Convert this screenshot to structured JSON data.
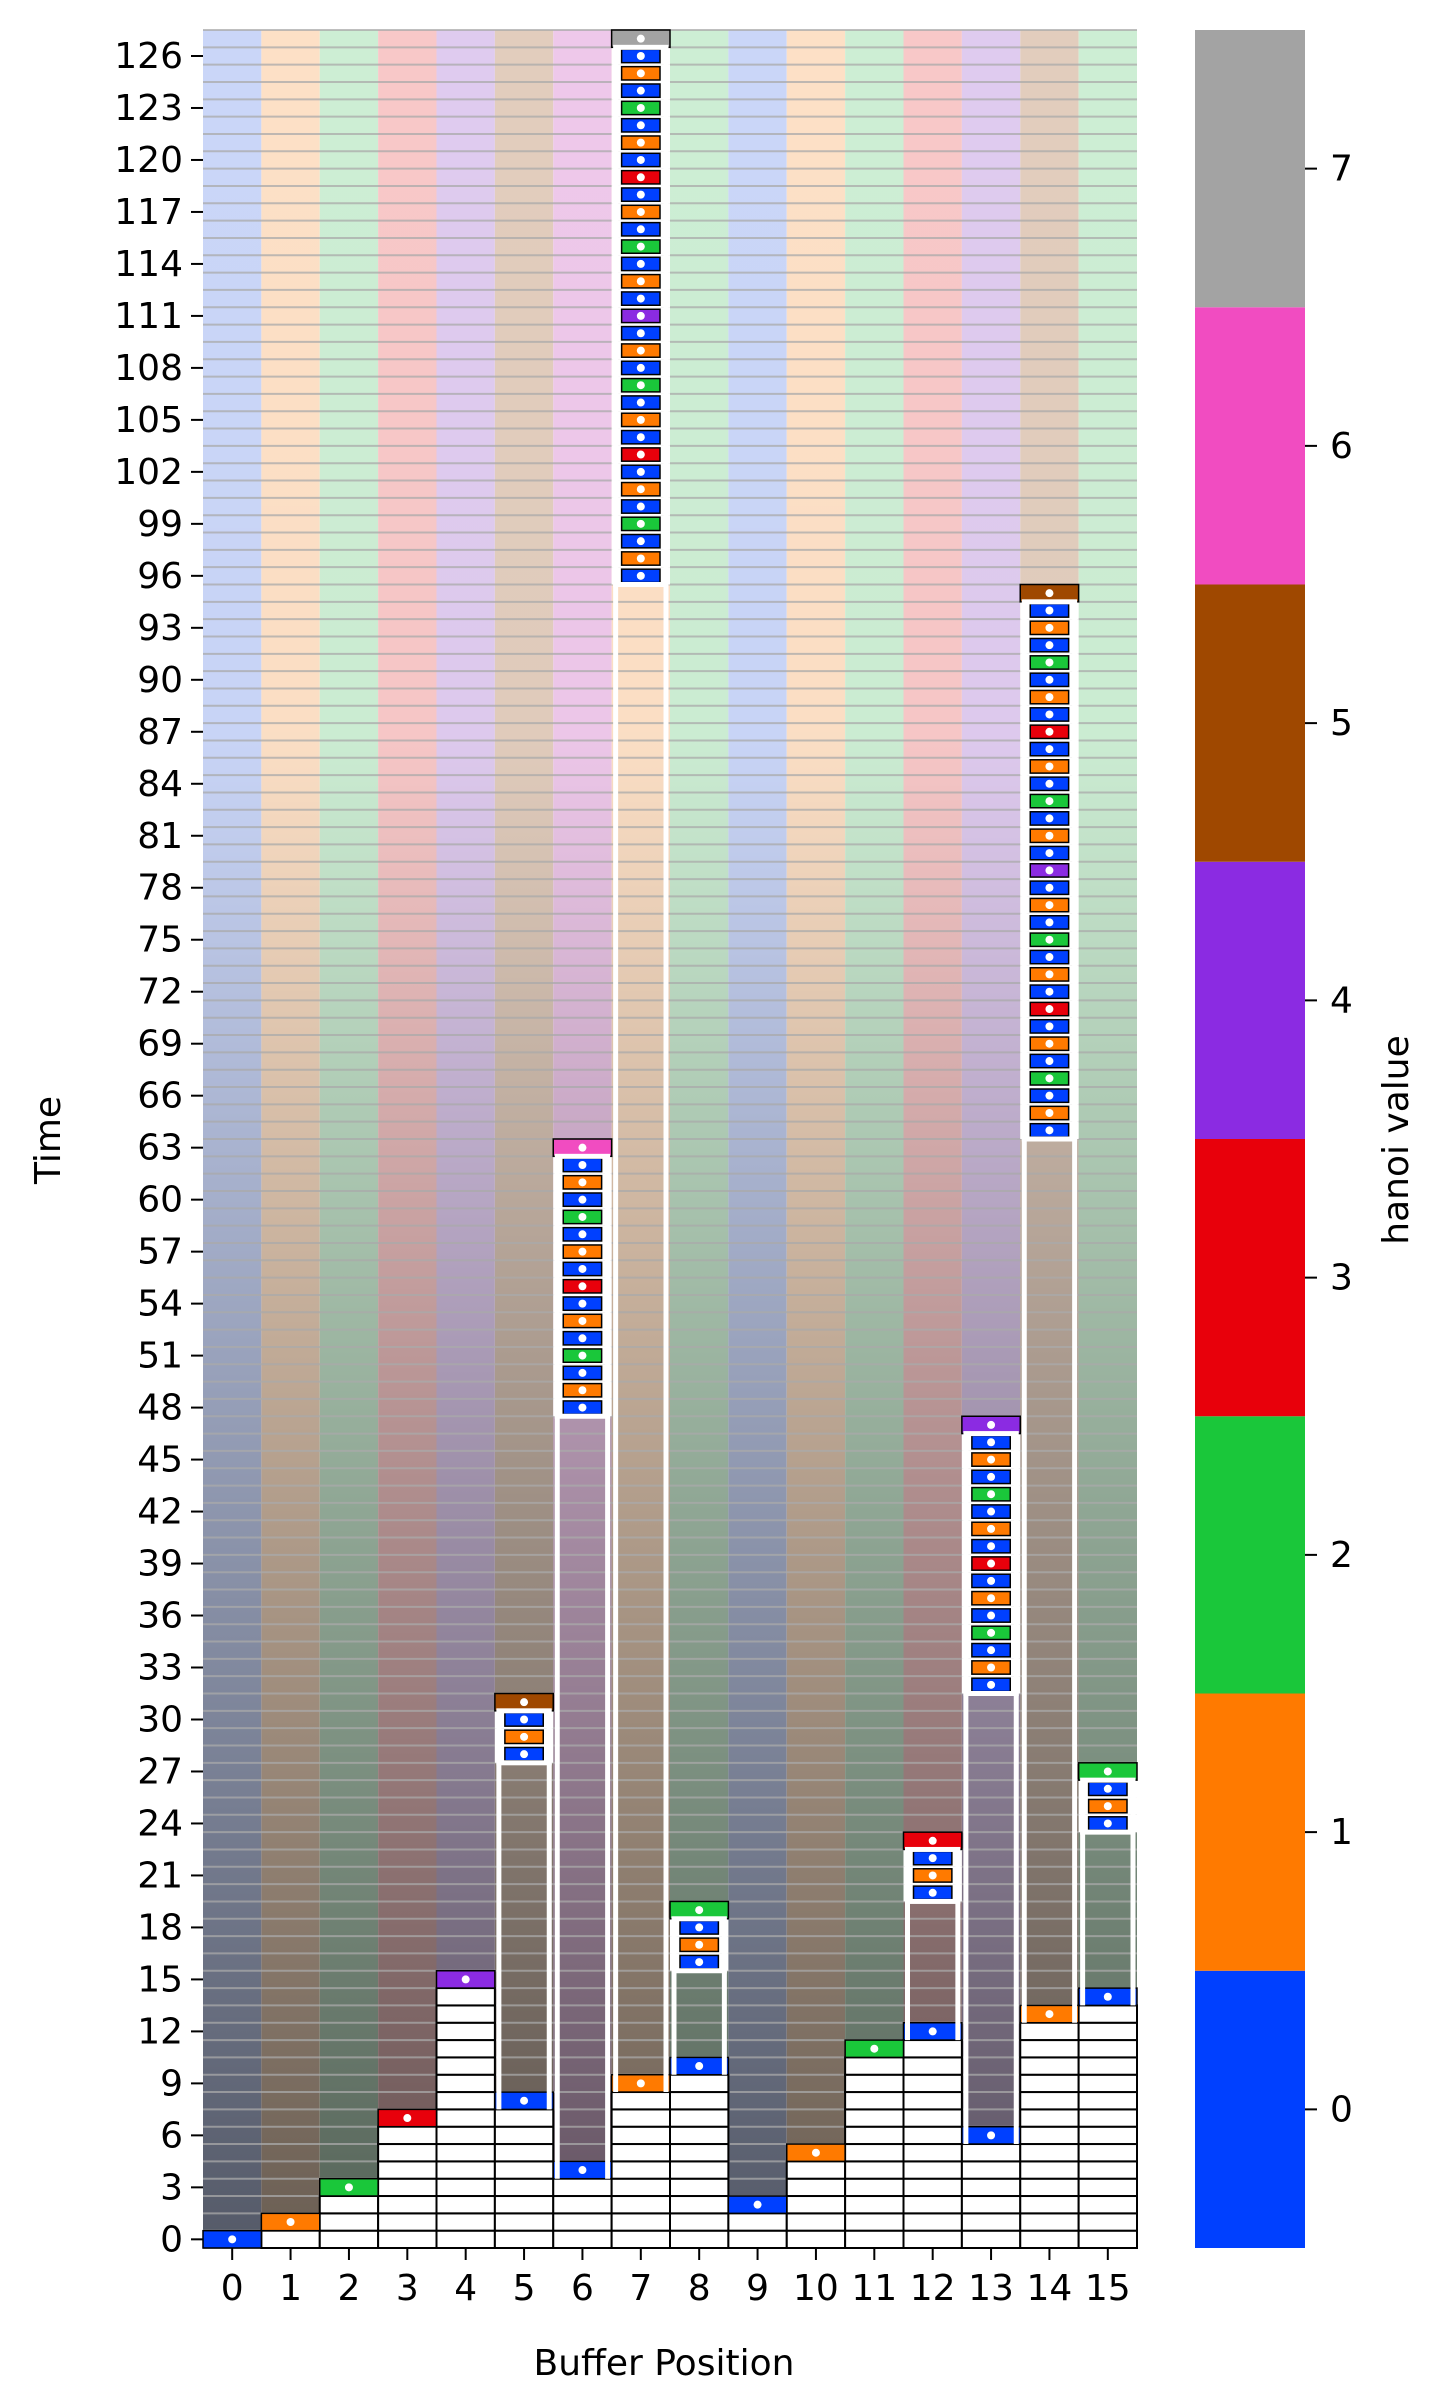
{
  "chart_data": {
    "type": "heatmap",
    "xlabel": "Buffer Position",
    "ylabel": "Time",
    "colorbar_label": "hanoi value",
    "x_ticks": [
      "0",
      "1",
      "2",
      "3",
      "4",
      "5",
      "6",
      "7",
      "8",
      "9",
      "10",
      "11",
      "12",
      "13",
      "14",
      "15"
    ],
    "y_ticks": [
      "0",
      "3",
      "6",
      "9",
      "12",
      "15",
      "18",
      "21",
      "24",
      "27",
      "30",
      "33",
      "36",
      "39",
      "42",
      "45",
      "48",
      "51",
      "54",
      "57",
      "60",
      "63",
      "66",
      "69",
      "72",
      "75",
      "78",
      "81",
      "84",
      "87",
      "90",
      "93",
      "96",
      "99",
      "102",
      "105",
      "108",
      "111",
      "114",
      "117",
      "120",
      "123",
      "126"
    ],
    "time_range": [
      0,
      127
    ],
    "colorbar_ticks": [
      "0",
      "1",
      "2",
      "3",
      "4",
      "5",
      "6",
      "7"
    ],
    "colorbar_range": [
      -0.5,
      7.5
    ],
    "hanoi_colors": [
      "#0040ff",
      "#ff7a00",
      "#1ac73a",
      "#e8000b",
      "#8b2be2",
      "#9f4800",
      "#f14cc1",
      "#a3a3a3"
    ],
    "column_base_colors": [
      "#cad6f8",
      "#fde0c6",
      "#cdeed4",
      "#f8c8c8",
      "#dfcbef",
      "#e2cdbd",
      "#eec8ea",
      "#fde0c6",
      "#cdeed4",
      "#cad6f8",
      "#fde0c6",
      "#cdeed4",
      "#f8c8c8",
      "#dfcbef",
      "#e2cdbd",
      "#cdeed4"
    ],
    "settle_events": [
      {
        "position": 0,
        "time": 0,
        "value": 0
      },
      {
        "position": 1,
        "time": 1,
        "value": 1
      },
      {
        "position": 2,
        "time": 3,
        "value": 2
      },
      {
        "position": 3,
        "time": 7,
        "value": 3
      },
      {
        "position": 4,
        "time": 15,
        "value": 4
      },
      {
        "position": 5,
        "time": 8,
        "value": 0
      },
      {
        "position": 5,
        "time": 31,
        "value": 5
      },
      {
        "position": 6,
        "time": 4,
        "value": 0
      },
      {
        "position": 6,
        "time": 63,
        "value": 6
      },
      {
        "position": 7,
        "time": 9,
        "value": 1
      },
      {
        "position": 7,
        "time": 127,
        "value": 7
      },
      {
        "position": 8,
        "time": 10,
        "value": 0
      },
      {
        "position": 8,
        "time": 19,
        "value": 2
      },
      {
        "position": 9,
        "time": 2,
        "value": 0
      },
      {
        "position": 10,
        "time": 5,
        "value": 1
      },
      {
        "position": 11,
        "time": 11,
        "value": 2
      },
      {
        "position": 12,
        "time": 12,
        "value": 0
      },
      {
        "position": 12,
        "time": 23,
        "value": 3
      },
      {
        "position": 13,
        "time": 6,
        "value": 0
      },
      {
        "position": 13,
        "time": 47,
        "value": 4
      },
      {
        "position": 14,
        "time": 13,
        "value": 1
      },
      {
        "position": 14,
        "time": 95,
        "value": 5
      },
      {
        "position": 15,
        "time": 14,
        "value": 0
      },
      {
        "position": 15,
        "time": 27,
        "value": 2
      }
    ],
    "active_blocks": [
      {
        "position": 5,
        "time_start": 28,
        "time_end": 30,
        "values": [
          0,
          1,
          0
        ]
      },
      {
        "position": 6,
        "time_start": 48,
        "time_end": 62,
        "values": [
          0,
          1,
          0,
          2,
          0,
          1,
          0,
          3,
          0,
          1,
          0,
          2,
          0,
          1,
          0
        ]
      },
      {
        "position": 7,
        "time_start": 96,
        "time_end": 126,
        "values": [
          0,
          1,
          0,
          2,
          0,
          1,
          0,
          3,
          0,
          1,
          0,
          2,
          0,
          1,
          0,
          4,
          0,
          1,
          0,
          2,
          0,
          1,
          0,
          3,
          0,
          1,
          0,
          2,
          0,
          1,
          0
        ]
      },
      {
        "position": 8,
        "time_start": 16,
        "time_end": 18,
        "values": [
          0,
          1,
          0
        ]
      },
      {
        "position": 12,
        "time_start": 20,
        "time_end": 22,
        "values": [
          0,
          1,
          0
        ]
      },
      {
        "position": 13,
        "time_start": 32,
        "time_end": 46,
        "values": [
          0,
          1,
          0,
          2,
          0,
          1,
          0,
          3,
          0,
          1,
          0,
          2,
          0,
          1,
          0
        ]
      },
      {
        "position": 14,
        "time_start": 64,
        "time_end": 94,
        "values": [
          0,
          1,
          0,
          2,
          0,
          1,
          0,
          3,
          0,
          1,
          0,
          2,
          0,
          1,
          0,
          4,
          0,
          1,
          0,
          2,
          0,
          1,
          0,
          3,
          0,
          1,
          0,
          2,
          0,
          1,
          0
        ]
      },
      {
        "position": 15,
        "time_start": 24,
        "time_end": 26,
        "values": [
          0,
          1,
          0
        ]
      }
    ],
    "grid": true,
    "legend": "colorbar-right"
  }
}
